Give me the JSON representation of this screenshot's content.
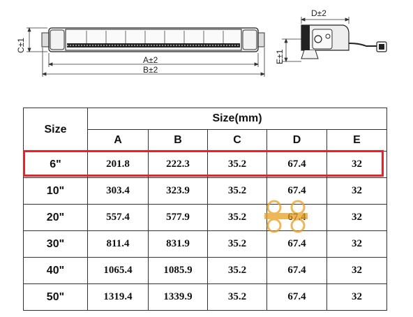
{
  "drawing": {
    "labels": {
      "a": "A±2",
      "b": "B±2",
      "c": "C±1",
      "d": "D±2",
      "e": "E±1"
    }
  },
  "table": {
    "size_header": "Size",
    "group_header": "Size(mm)",
    "columns": [
      "A",
      "B",
      "C",
      "D",
      "E"
    ],
    "rows": [
      {
        "size": "6\"",
        "values": [
          "201.8",
          "222.3",
          "35.2",
          "67.4",
          "32"
        ],
        "highlighted": true
      },
      {
        "size": "10\"",
        "values": [
          "303.4",
          "323.9",
          "35.2",
          "67.4",
          "32"
        ],
        "highlighted": false
      },
      {
        "size": "20\"",
        "values": [
          "557.4",
          "577.9",
          "35.2",
          "67.4",
          "32"
        ],
        "highlighted": false
      },
      {
        "size": "30\"",
        "values": [
          "811.4",
          "831.9",
          "35.2",
          "67.4",
          "32"
        ],
        "highlighted": false
      },
      {
        "size": "40\"",
        "values": [
          "1065.4",
          "1085.9",
          "35.2",
          "67.4",
          "32"
        ],
        "highlighted": false
      },
      {
        "size": "50\"",
        "values": [
          "1319.4",
          "1339.9",
          "35.2",
          "67.4",
          "32"
        ],
        "highlighted": false
      }
    ]
  },
  "colors": {
    "highlight": "#e0262b",
    "watermark": "#e8a020"
  }
}
